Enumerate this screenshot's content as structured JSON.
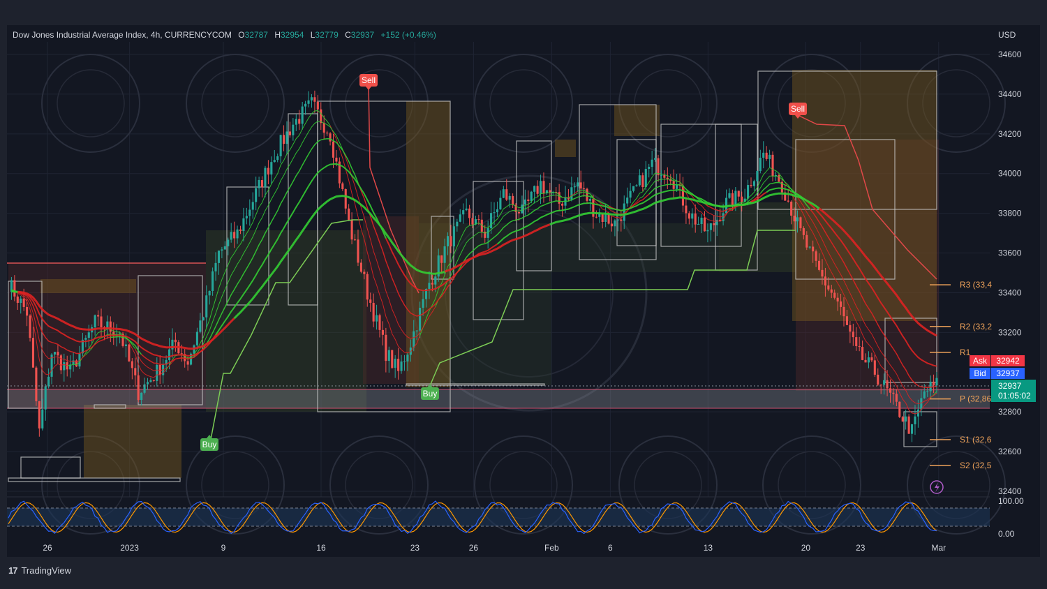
{
  "header": {
    "symbol": "Dow Jones Industrial Average Index, 4h, CURRENCYCOM",
    "open_label": "O",
    "open": "32787",
    "high_label": "H",
    "high": "32954",
    "low_label": "L",
    "low": "32779",
    "close_label": "C",
    "close": "32937",
    "change": "+152 (+0.46%)"
  },
  "currency": "USD",
  "brand": "TradingView",
  "colors": {
    "up": "#26a69a",
    "down": "#ef5350",
    "background": "#131722",
    "ema_green": "#33cc33",
    "ema_red": "#dd2222",
    "pivot": "#f0a35a",
    "ask": "#f23645",
    "bid": "#2962ff",
    "last": "#089981"
  },
  "chart_data": {
    "type": "candlestick",
    "timeframe": "4h",
    "y_axis": {
      "ticks": [
        34600,
        34400,
        34200,
        34000,
        33800,
        33600,
        33400,
        33200,
        32800,
        32600,
        32400
      ],
      "range": [
        32400,
        34600
      ]
    },
    "x_axis": {
      "ticks": [
        "26",
        "2023",
        "9",
        "16",
        "23",
        "26",
        "Feb",
        "6",
        "13",
        "20",
        "23",
        "Mar"
      ]
    },
    "close_path": [
      [
        0,
        33450
      ],
      [
        6,
        33300
      ],
      [
        10,
        32700
      ],
      [
        14,
        33100
      ],
      [
        20,
        33000
      ],
      [
        28,
        33250
      ],
      [
        36,
        33200
      ],
      [
        42,
        32900
      ],
      [
        48,
        33000
      ],
      [
        54,
        33150
      ],
      [
        58,
        33050
      ],
      [
        64,
        33350
      ],
      [
        68,
        33600
      ],
      [
        74,
        33700
      ],
      [
        80,
        33900
      ],
      [
        86,
        34100
      ],
      [
        92,
        34250
      ],
      [
        98,
        34350
      ],
      [
        104,
        34200
      ],
      [
        110,
        33750
      ],
      [
        116,
        33400
      ],
      [
        122,
        33100
      ],
      [
        126,
        33000
      ],
      [
        130,
        33150
      ],
      [
        136,
        33450
      ],
      [
        142,
        33650
      ],
      [
        148,
        33800
      ],
      [
        154,
        33700
      ],
      [
        160,
        33900
      ],
      [
        166,
        33800
      ],
      [
        172,
        33950
      ],
      [
        178,
        33850
      ],
      [
        184,
        33950
      ],
      [
        190,
        33800
      ],
      [
        196,
        33750
      ],
      [
        202,
        33900
      ],
      [
        208,
        34050
      ],
      [
        214,
        34000
      ],
      [
        220,
        33800
      ],
      [
        226,
        33700
      ],
      [
        232,
        33850
      ],
      [
        238,
        33900
      ],
      [
        244,
        34100
      ],
      [
        250,
        33950
      ],
      [
        256,
        33700
      ],
      [
        262,
        33500
      ],
      [
        268,
        33350
      ],
      [
        274,
        33100
      ],
      [
        280,
        33000
      ],
      [
        286,
        32850
      ],
      [
        292,
        32700
      ],
      [
        296,
        32900
      ],
      [
        300,
        32937
      ]
    ],
    "signals": [
      {
        "label": "Buy",
        "type": "buy"
      },
      {
        "label": "Sell",
        "type": "sell"
      },
      {
        "label": "Buy",
        "type": "buy"
      },
      {
        "label": "Sell",
        "type": "sell"
      }
    ],
    "pivots": [
      {
        "label": "R3 (33,4",
        "value": 33440
      },
      {
        "label": "R2 (33,2",
        "value": 33230
      },
      {
        "label": "R1",
        "value": 33100
      },
      {
        "label": "P (32,86",
        "value": 32865
      },
      {
        "label": "S1 (32,6",
        "value": 32660
      },
      {
        "label": "S2 (32,5",
        "value": 32530
      }
    ],
    "price_tags": {
      "ask_label": "Ask",
      "ask": "32942",
      "bid_label": "Bid",
      "bid": "32937",
      "last": "32937",
      "countdown": "01:05:02"
    },
    "oscillator": {
      "ticks": [
        "100.00",
        "0.00"
      ],
      "range": [
        0,
        100
      ]
    }
  }
}
